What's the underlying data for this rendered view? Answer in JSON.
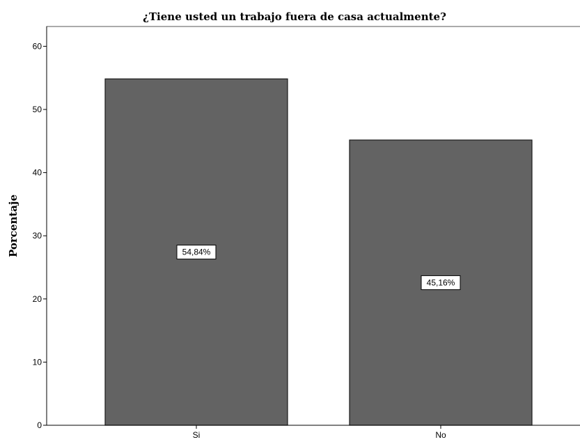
{
  "chart_data": {
    "type": "bar",
    "title": "¿Tiene usted un trabajo fuera de casa actualmente?",
    "xlabel": "",
    "ylabel": "Porcentaje",
    "categories": [
      "Si",
      "No"
    ],
    "values": [
      54.84,
      45.16
    ],
    "data_labels": [
      "54,84%",
      "45,16%"
    ],
    "ylim": [
      0,
      63
    ],
    "yticks": [
      0,
      10,
      20,
      30,
      40,
      50,
      60
    ],
    "grid": false,
    "bar_color": "#636363",
    "bar_edge_color": "#1a1a1a"
  }
}
